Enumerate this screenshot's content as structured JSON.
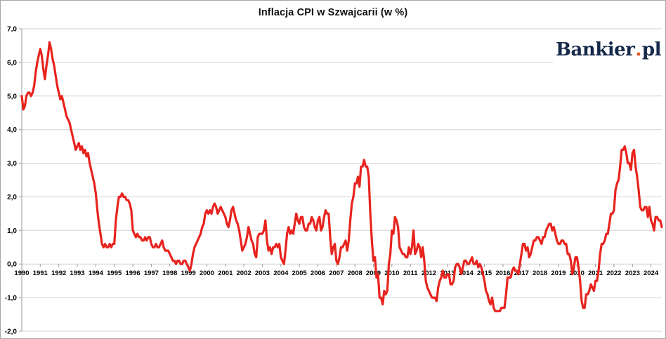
{
  "page": {
    "background": "#ffffff",
    "border_color": "#a6a6a6"
  },
  "header": {
    "title": "Inflacja CPI w Szwajcarii (w %)"
  },
  "branding": {
    "logo_text": "Bankier.pl",
    "logo_main": "Bankier",
    "logo_dot": ".",
    "logo_suffix": "pl",
    "color_navy": "#15294a",
    "color_dot": "#e8501e"
  },
  "chart_data": {
    "type": "line",
    "title": "Inflacja CPI w Szwajcarii (w %)",
    "xlabel": "",
    "ylabel": "",
    "x_unit": "month",
    "x_start": "1990-01",
    "x_end": "2024-08",
    "categories": [
      "1990",
      "1991",
      "1992",
      "1993",
      "1994",
      "1995",
      "1996",
      "1997",
      "1998",
      "1999",
      "2000",
      "2001",
      "2002",
      "2003",
      "2004",
      "2005",
      "2006",
      "2007",
      "2008",
      "2009",
      "2010",
      "2011",
      "2012",
      "2013",
      "2014",
      "2015",
      "2016",
      "2017",
      "2018",
      "2019",
      "2020",
      "2021",
      "2022",
      "2023",
      "2024"
    ],
    "y_ticks": [
      7,
      6,
      5,
      4,
      3,
      2,
      1,
      0,
      -1,
      -2
    ],
    "y_tick_labels": [
      "7,0",
      "6,0",
      "5,0",
      "4,0",
      "3,0",
      "2,0",
      "1,0",
      "0,0",
      "-1,0",
      "-2,0"
    ],
    "ylim": [
      -2,
      7
    ],
    "grid": true,
    "legend": "none",
    "line_color": "#e8231e",
    "gridline_color": "#d2d2d2",
    "axis_color": "#9a9a9a",
    "values": [
      5.0,
      4.6,
      4.7,
      5.0,
      5.1,
      5.1,
      5.0,
      5.1,
      5.3,
      5.7,
      6.0,
      6.2,
      6.4,
      6.2,
      5.8,
      5.5,
      5.9,
      6.2,
      6.6,
      6.4,
      6.1,
      5.9,
      5.6,
      5.3,
      5.1,
      4.9,
      5.0,
      4.8,
      4.6,
      4.4,
      4.3,
      4.2,
      4.0,
      3.8,
      3.6,
      3.4,
      3.5,
      3.6,
      3.4,
      3.5,
      3.3,
      3.4,
      3.2,
      3.3,
      3.0,
      2.8,
      2.6,
      2.4,
      2.1,
      1.6,
      1.2,
      0.9,
      0.6,
      0.5,
      0.6,
      0.5,
      0.5,
      0.6,
      0.5,
      0.6,
      0.6,
      1.3,
      1.7,
      2.0,
      2.0,
      2.1,
      2.0,
      2.0,
      1.9,
      1.9,
      1.8,
      1.6,
      1.0,
      0.9,
      0.8,
      0.9,
      0.8,
      0.8,
      0.7,
      0.7,
      0.8,
      0.7,
      0.8,
      0.8,
      0.6,
      0.5,
      0.5,
      0.6,
      0.5,
      0.5,
      0.6,
      0.7,
      0.5,
      0.4,
      0.4,
      0.4,
      0.3,
      0.2,
      0.1,
      0.1,
      0.0,
      0.1,
      0.1,
      0.0,
      0.0,
      0.1,
      0.1,
      0.0,
      -0.1,
      -0.2,
      0.0,
      0.3,
      0.5,
      0.6,
      0.7,
      0.8,
      0.9,
      1.1,
      1.2,
      1.5,
      1.6,
      1.5,
      1.6,
      1.5,
      1.7,
      1.8,
      1.7,
      1.5,
      1.6,
      1.7,
      1.6,
      1.5,
      1.4,
      1.2,
      1.1,
      1.3,
      1.6,
      1.7,
      1.5,
      1.3,
      1.2,
      1.0,
      0.7,
      0.4,
      0.5,
      0.6,
      0.8,
      1.1,
      0.9,
      0.7,
      0.6,
      0.3,
      0.2,
      0.8,
      0.9,
      0.9,
      0.9,
      1.0,
      1.3,
      0.7,
      0.4,
      0.5,
      0.3,
      0.5,
      0.5,
      0.6,
      0.5,
      0.6,
      0.2,
      0.1,
      0.0,
      0.4,
      0.9,
      1.1,
      0.9,
      1.0,
      0.9,
      1.2,
      1.5,
      1.3,
      1.2,
      1.4,
      1.4,
      1.1,
      1.0,
      1.0,
      1.2,
      1.2,
      1.4,
      1.3,
      1.1,
      1.0,
      1.3,
      1.4,
      1.0,
      1.1,
      1.4,
      1.6,
      1.5,
      1.5,
      0.8,
      0.3,
      0.5,
      0.6,
      0.1,
      0.0,
      0.2,
      0.5,
      0.5,
      0.6,
      0.7,
      0.4,
      0.7,
      1.3,
      1.8,
      2.0,
      2.4,
      2.4,
      2.6,
      2.3,
      2.9,
      2.9,
      3.1,
      2.9,
      2.9,
      2.6,
      1.5,
      0.7,
      0.1,
      0.2,
      -0.4,
      -0.3,
      -1.0,
      -1.0,
      -1.2,
      -0.8,
      -0.9,
      -0.8,
      0.0,
      0.3,
      1.0,
      0.9,
      1.4,
      1.3,
      1.1,
      0.5,
      0.4,
      0.3,
      0.3,
      0.2,
      0.2,
      0.5,
      0.3,
      0.5,
      1.0,
      0.3,
      0.4,
      0.6,
      0.5,
      0.2,
      0.5,
      0.1,
      -0.5,
      -0.7,
      -0.8,
      -0.9,
      -1.0,
      -1.0,
      -1.0,
      -1.1,
      -0.7,
      -0.5,
      -0.4,
      -0.2,
      -0.4,
      -0.4,
      -0.3,
      -0.3,
      -0.6,
      -0.6,
      -0.5,
      -0.1,
      0.0,
      0.0,
      -0.1,
      -0.3,
      -0.1,
      0.1,
      0.1,
      0.0,
      0.0,
      0.1,
      0.2,
      0.0,
      0.0,
      0.1,
      -0.1,
      0.0,
      -0.1,
      -0.3,
      -0.5,
      -0.8,
      -0.9,
      -1.1,
      -1.2,
      -1.0,
      -1.3,
      -1.4,
      -1.4,
      -1.4,
      -1.4,
      -1.3,
      -1.3,
      -1.3,
      -0.9,
      -0.4,
      -0.4,
      -0.4,
      -0.2,
      -0.1,
      -0.2,
      -0.2,
      -0.3,
      0.0,
      0.3,
      0.6,
      0.6,
      0.4,
      0.5,
      0.2,
      0.3,
      0.5,
      0.7,
      0.7,
      0.8,
      0.8,
      0.7,
      0.6,
      0.8,
      0.8,
      1.0,
      1.1,
      1.2,
      1.2,
      1.0,
      1.1,
      0.9,
      0.7,
      0.6,
      0.6,
      0.7,
      0.7,
      0.6,
      0.6,
      0.3,
      0.3,
      0.1,
      -0.3,
      -0.1,
      0.2,
      0.2,
      -0.1,
      -0.5,
      -1.1,
      -1.3,
      -1.3,
      -0.9,
      -0.9,
      -0.8,
      -0.6,
      -0.7,
      -0.8,
      -0.5,
      -0.5,
      -0.2,
      0.3,
      0.6,
      0.6,
      0.7,
      0.9,
      0.9,
      1.2,
      1.5,
      1.5,
      1.6,
      2.2,
      2.4,
      2.5,
      2.9,
      3.4,
      3.4,
      3.5,
      3.3,
      3.0,
      3.0,
      2.8,
      3.3,
      3.4,
      2.9,
      2.6,
      2.2,
      1.7,
      1.6,
      1.6,
      1.7,
      1.7,
      1.4,
      1.7,
      1.3,
      1.2,
      1.0,
      1.4,
      1.4,
      1.3,
      1.3,
      1.1
    ]
  }
}
